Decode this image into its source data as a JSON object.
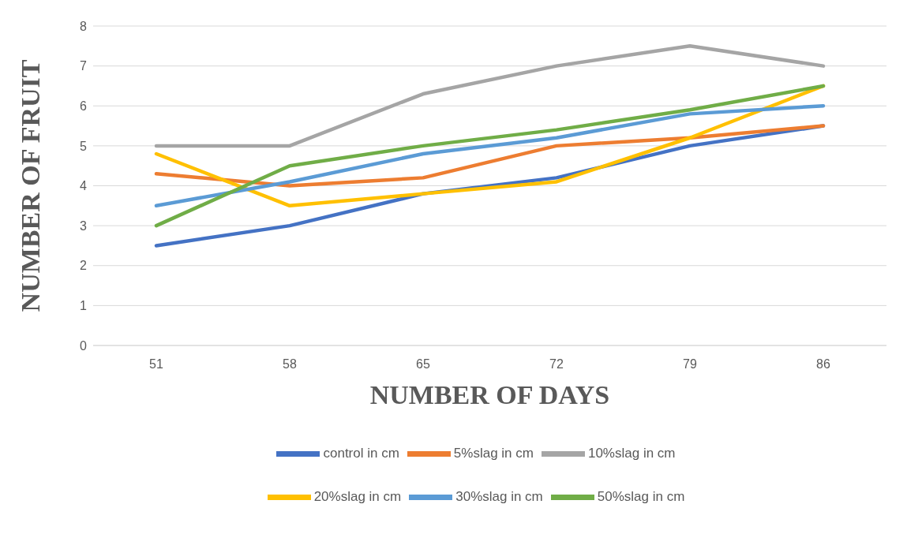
{
  "chart_data": {
    "type": "line",
    "xlabel": "NUMBER OF DAYS",
    "ylabel": "NUMBER OF FRUIT",
    "categories": [
      "51",
      "58",
      "65",
      "72",
      "79",
      "86"
    ],
    "series": [
      {
        "name": "control in cm",
        "color": "#4472c4",
        "values": [
          2.5,
          3,
          3.8,
          4.2,
          5,
          5.5
        ]
      },
      {
        "name": "5%slag in cm",
        "color": "#ed7d31",
        "values": [
          4.3,
          4.0,
          4.2,
          5.0,
          5.2,
          5.5
        ]
      },
      {
        "name": "10%slag in cm",
        "color": "#a5a5a5",
        "values": [
          5,
          5,
          6.3,
          7,
          7.5,
          7
        ]
      },
      {
        "name": "20%slag in cm",
        "color": "#ffc000",
        "values": [
          4.8,
          3.5,
          3.8,
          4.1,
          5.2,
          6.5
        ]
      },
      {
        "name": "30%slag in cm",
        "color": "#5b9bd5",
        "values": [
          3.5,
          4.1,
          4.8,
          5.2,
          5.8,
          6
        ]
      },
      {
        "name": "50%slag in cm",
        "color": "#70ad47",
        "values": [
          3,
          4.5,
          5,
          5.4,
          5.9,
          6.5
        ]
      }
    ],
    "ylim": [
      0,
      8
    ],
    "yticks": [
      0,
      1,
      2,
      3,
      4,
      5,
      6,
      7,
      8
    ],
    "grid": "y",
    "legend": "bottom"
  }
}
